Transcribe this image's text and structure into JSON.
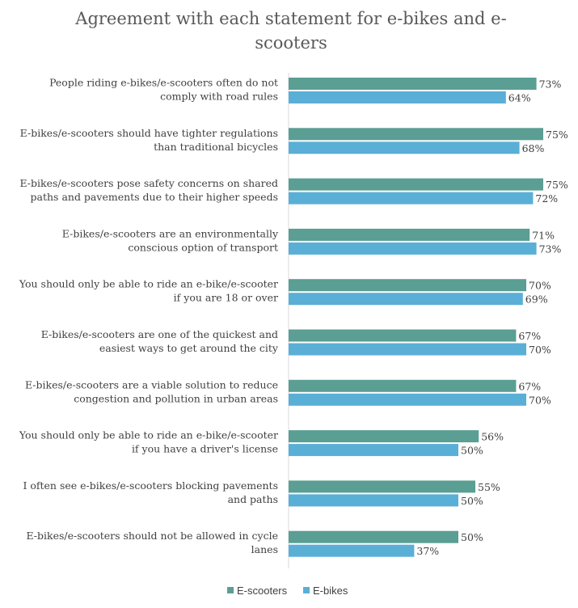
{
  "chart_data": {
    "type": "bar",
    "orientation": "horizontal",
    "title": "Agreement with each statement for e-bikes and e-scooters",
    "xlabel": "",
    "ylabel": "",
    "xlim": [
      0,
      80
    ],
    "grid": false,
    "legend_position": "bottom",
    "categories": [
      [
        "People riding e-bikes/e-scooters often do not",
        "comply with road rules"
      ],
      [
        "E-bikes/e-scooters should have tighter regulations",
        "than traditional bicycles"
      ],
      [
        "E-bikes/e-scooters pose safety concerns on shared",
        "paths and pavements due to their higher speeds"
      ],
      [
        "E-bikes/e-scooters are an environmentally",
        "conscious option of transport"
      ],
      [
        "You should only be able to ride an e-bike/e-scooter",
        "if you are 18 or over"
      ],
      [
        "E-bikes/e-scooters are one of the quickest and",
        "easiest ways to get around the city"
      ],
      [
        "E-bikes/e-scooters are a viable solution to reduce",
        "congestion and pollution in urban areas"
      ],
      [
        "You should only be able to ride an e-bike/e-scooter",
        "if you have a driver's license"
      ],
      [
        "I often see e-bikes/e-scooters blocking pavements",
        "and paths"
      ],
      [
        "E-bikes/e-scooters should not be allowed in cycle",
        "lanes"
      ]
    ],
    "series": [
      {
        "name": "E-scooters",
        "color": "#5b9e93",
        "values": [
          73,
          75,
          75,
          71,
          70,
          67,
          67,
          56,
          55,
          50
        ]
      },
      {
        "name": "E-bikes",
        "color": "#5aafd6",
        "values": [
          64,
          68,
          72,
          73,
          69,
          70,
          70,
          50,
          50,
          37
        ]
      }
    ],
    "value_suffix": "%"
  }
}
